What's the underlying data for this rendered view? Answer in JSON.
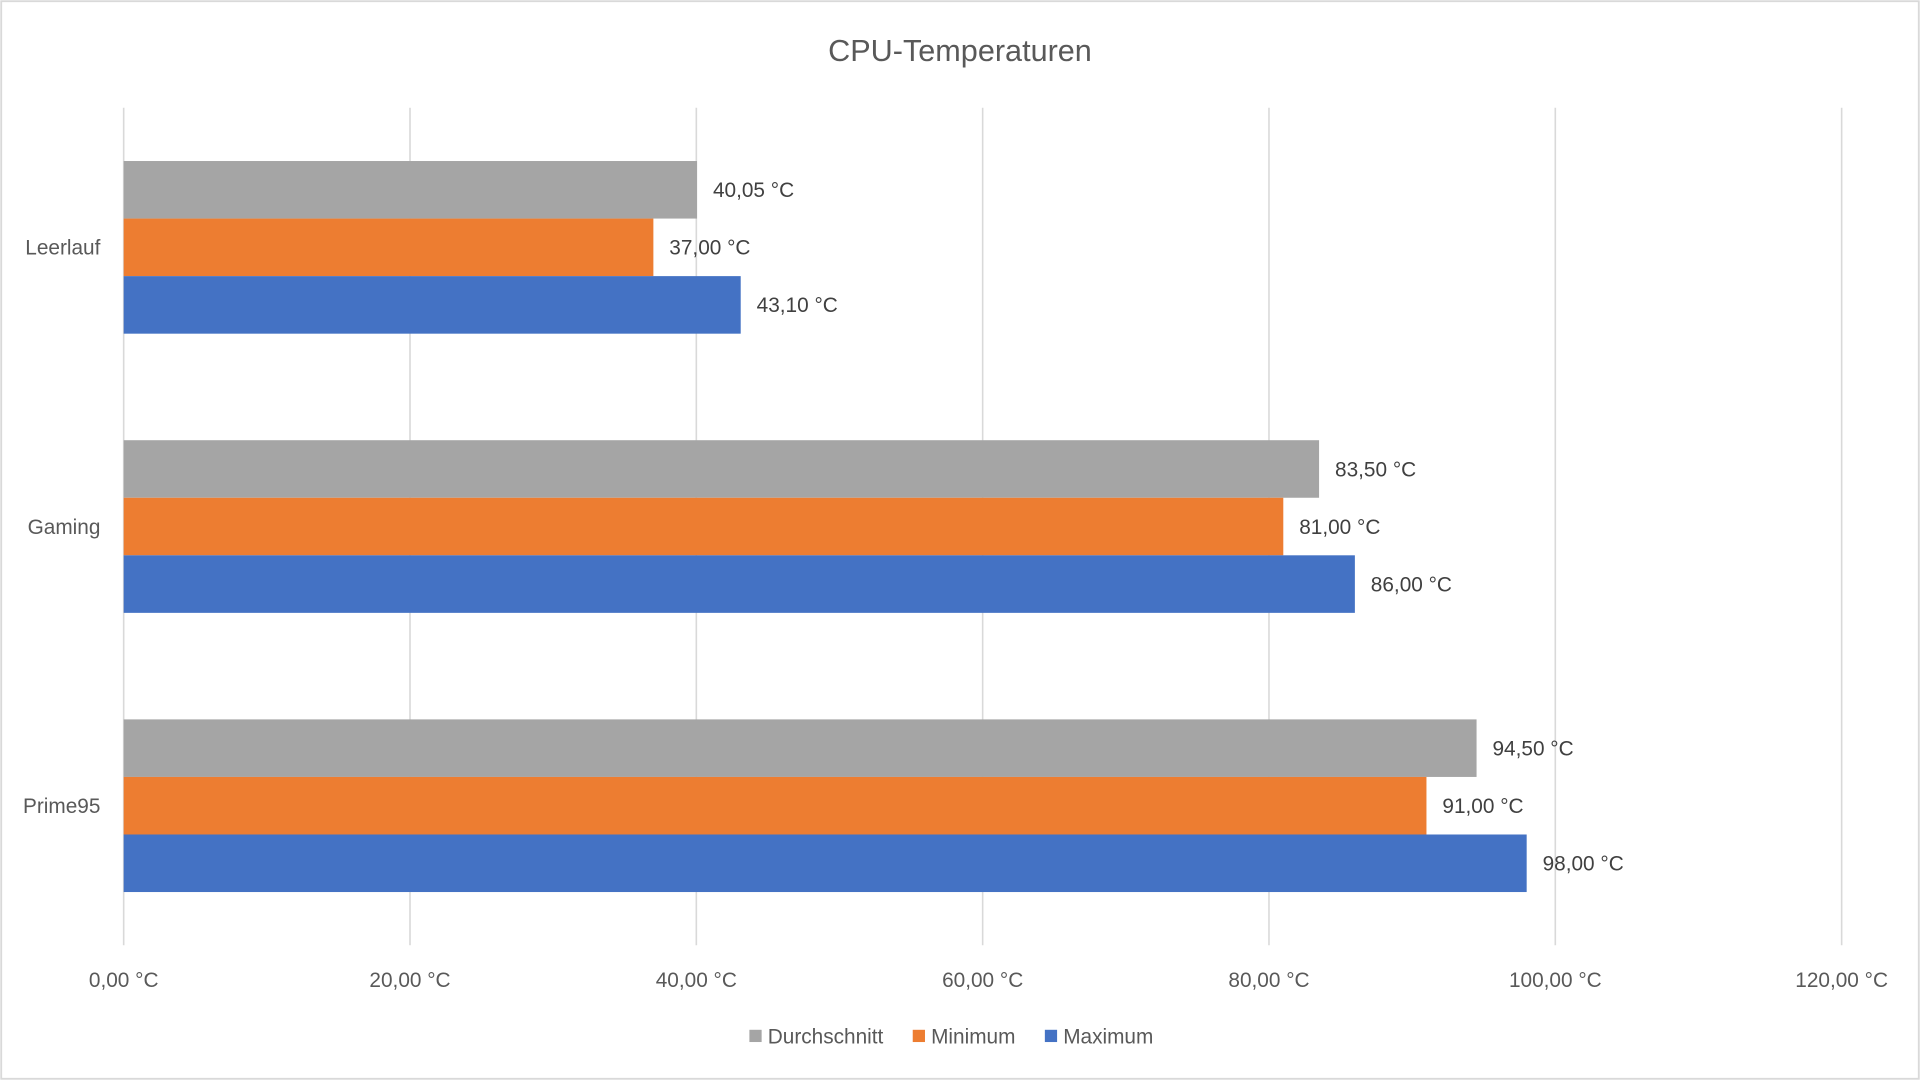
{
  "chart_data": {
    "type": "bar",
    "orientation": "horizontal",
    "title": "CPU-Temperaturen",
    "categories": [
      "Leerlauf",
      "Gaming",
      "Prime95"
    ],
    "series": [
      {
        "name": "Durchschnitt",
        "color": "#A5A5A5",
        "values": [
          40.05,
          83.5,
          94.5
        ],
        "labels": [
          "40,05 °C",
          "83,50 °C",
          "94,50 °C"
        ]
      },
      {
        "name": "Minimum",
        "color": "#ED7D31",
        "values": [
          37.0,
          81.0,
          91.0
        ],
        "labels": [
          "37,00 °C",
          "81,00 °C",
          "91,00 °C"
        ]
      },
      {
        "name": "Maximum",
        "color": "#4472C4",
        "values": [
          43.1,
          86.0,
          98.0
        ],
        "labels": [
          "43,10 °C",
          "86,00 °C",
          "98,00 °C"
        ]
      }
    ],
    "xlim": [
      0,
      120
    ],
    "xticks": [
      0,
      20,
      40,
      60,
      80,
      100,
      120
    ],
    "xtick_labels": [
      "0,00 °C",
      "20,00 °C",
      "40,00 °C",
      "60,00 °C",
      "80,00 °C",
      "100,00 °C",
      "120,00 °C"
    ],
    "grid": "vertical",
    "legend_position": "bottom"
  }
}
